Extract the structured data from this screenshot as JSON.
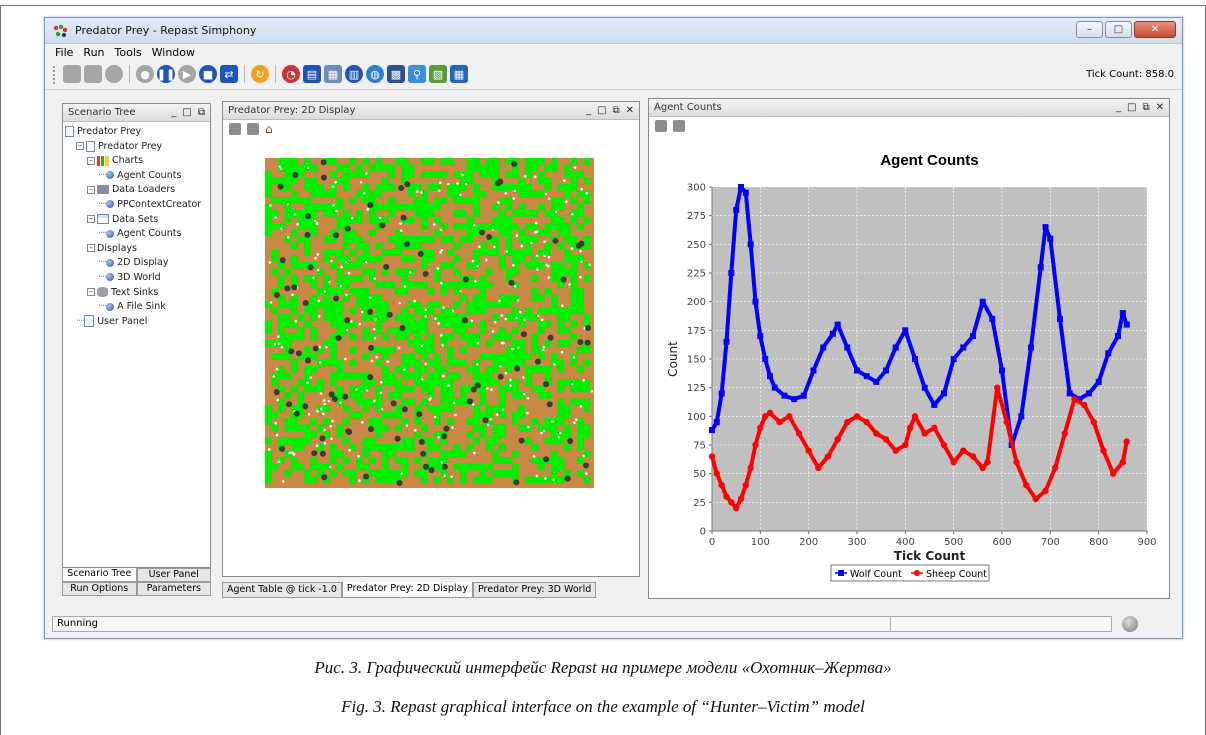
{
  "window": {
    "title": "Predator Prey - Repast Simphony",
    "controls": {
      "minimize": "–",
      "maximize": "□",
      "close": "✕"
    }
  },
  "menu": [
    "File",
    "Run",
    "Tools",
    "Window"
  ],
  "toolbar": {
    "icons": [
      "new-icon",
      "save-icon",
      "save-as-icon",
      "init-icon",
      "start-icon",
      "step-icon",
      "stop-icon",
      "reset-icon",
      "info-icon",
      "chart-icon",
      "data-icon",
      "table-icon",
      "store-icon",
      "world-icon",
      "film-icon",
      "zoom-icon",
      "image-icon",
      "grid-icon"
    ],
    "tick_count_label": "Tick Count: 858.0"
  },
  "scenario_tree": {
    "title": "Scenario Tree",
    "nodes": [
      {
        "label": "Predator Prey",
        "level": 0,
        "icon": "page"
      },
      {
        "label": "Predator Prey",
        "level": 1,
        "icon": "page",
        "toggle": "–"
      },
      {
        "label": "Charts",
        "level": 2,
        "icon": "charts",
        "toggle": "–"
      },
      {
        "label": "Agent Counts",
        "level": 3,
        "icon": "bullet"
      },
      {
        "label": "Data Loaders",
        "level": 2,
        "icon": "loader",
        "toggle": "–"
      },
      {
        "label": "PPContextCreator",
        "level": 3,
        "icon": "bullet"
      },
      {
        "label": "Data Sets",
        "level": 2,
        "icon": "sets",
        "toggle": "–"
      },
      {
        "label": "Agent Counts",
        "level": 3,
        "icon": "bullet"
      },
      {
        "label": "Displays",
        "level": 2,
        "icon": "display",
        "toggle": "–"
      },
      {
        "label": "2D Display",
        "level": 3,
        "icon": "bullet"
      },
      {
        "label": "3D World",
        "level": 3,
        "icon": "bullet"
      },
      {
        "label": "Text Sinks",
        "level": 2,
        "icon": "sink",
        "toggle": "–"
      },
      {
        "label": "A File Sink",
        "level": 3,
        "icon": "bullet"
      },
      {
        "label": "User Panel",
        "level": 1,
        "icon": "userpanel"
      }
    ],
    "tabs_row1": [
      "Scenario Tree",
      "User Panel"
    ],
    "tabs_row2": [
      "Run Options",
      "Parameters"
    ]
  },
  "display_panel": {
    "title": "Predator Prey: 2D Display",
    "tabs": [
      "Agent Table @ tick -1.0",
      "Predator Prey: 2D Display",
      "Predator Prey: 3D World"
    ],
    "colors": {
      "dirt": "#c98843",
      "grass": "#00ee00",
      "wolf": "#3a3a3a",
      "sheep": "#ffffff"
    }
  },
  "chart_panel": {
    "title": "Agent Counts"
  },
  "chart_data": {
    "type": "line",
    "title": "Agent Counts",
    "xlabel": "Tick Count",
    "ylabel": "Count",
    "xlim": [
      0,
      900
    ],
    "ylim": [
      0,
      300
    ],
    "xticks": [
      0,
      100,
      200,
      300,
      400,
      500,
      600,
      700,
      800,
      900
    ],
    "yticks": [
      0,
      25,
      50,
      75,
      100,
      125,
      150,
      175,
      200,
      225,
      250,
      275,
      300
    ],
    "grid": true,
    "legend": "bottom",
    "series": [
      {
        "name": "Wolf Count",
        "color": "#0000ff",
        "marker": "square",
        "x": [
          0,
          10,
          20,
          30,
          40,
          50,
          60,
          70,
          80,
          90,
          100,
          110,
          120,
          130,
          150,
          170,
          190,
          210,
          230,
          250,
          260,
          280,
          300,
          320,
          340,
          360,
          380,
          400,
          420,
          440,
          460,
          480,
          500,
          520,
          540,
          560,
          580,
          600,
          620,
          640,
          660,
          680,
          690,
          700,
          720,
          740,
          760,
          780,
          800,
          820,
          840,
          850,
          858
        ],
        "y": [
          88,
          95,
          120,
          165,
          225,
          280,
          300,
          295,
          250,
          200,
          170,
          150,
          135,
          125,
          118,
          115,
          118,
          140,
          160,
          172,
          180,
          160,
          140,
          135,
          130,
          140,
          160,
          175,
          150,
          125,
          110,
          120,
          150,
          160,
          170,
          200,
          185,
          140,
          75,
          100,
          160,
          230,
          265,
          255,
          185,
          120,
          115,
          120,
          130,
          155,
          170,
          190,
          180
        ]
      },
      {
        "name": "Sheep Count",
        "color": "#ff0000",
        "marker": "circle",
        "x": [
          0,
          10,
          20,
          30,
          40,
          50,
          60,
          70,
          80,
          90,
          100,
          110,
          120,
          140,
          160,
          180,
          200,
          220,
          240,
          260,
          280,
          300,
          320,
          340,
          360,
          380,
          400,
          410,
          420,
          440,
          460,
          480,
          500,
          520,
          540,
          560,
          570,
          590,
          610,
          630,
          650,
          670,
          690,
          710,
          730,
          750,
          770,
          790,
          810,
          830,
          850,
          858
        ],
        "y": [
          65,
          50,
          40,
          30,
          25,
          20,
          28,
          40,
          55,
          75,
          90,
          100,
          103,
          95,
          100,
          85,
          70,
          55,
          65,
          80,
          95,
          100,
          95,
          85,
          80,
          70,
          75,
          90,
          100,
          85,
          90,
          75,
          60,
          70,
          65,
          55,
          60,
          125,
          95,
          60,
          40,
          28,
          35,
          55,
          85,
          115,
          110,
          95,
          70,
          50,
          60,
          78
        ]
      }
    ]
  },
  "statusbar": {
    "text": "Running"
  },
  "captions": {
    "ru": "Рис. 3. Графический интерфейс Repast на примере модели «Охотник–Жертва»",
    "en": "Fig. 3. Repast graphical interface on the example of “Hunter–Victim” model"
  }
}
